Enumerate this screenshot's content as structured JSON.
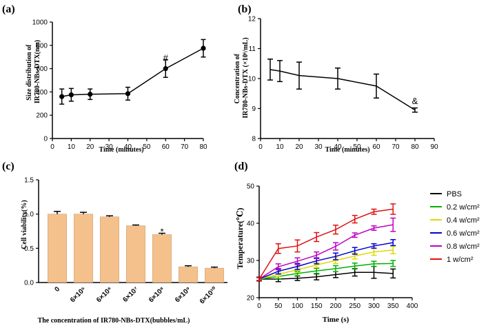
{
  "chart_data": [
    {
      "id": "a",
      "panel_label": "(a)",
      "type": "line",
      "title": "",
      "xlabel": "Time (minutes)",
      "ylabel": "Size distribution of IR780-NBs-DTX(nm)",
      "ylabel_lines": [
        "Size distribution of",
        "IR780-NBs-DTX(nm)"
      ],
      "xlim": [
        0,
        80
      ],
      "ylim": [
        0,
        1000
      ],
      "xticks": [
        0,
        10,
        20,
        30,
        40,
        50,
        60,
        70,
        80
      ],
      "yticks": [
        0,
        200,
        400,
        600,
        800,
        1000
      ],
      "x": [
        5,
        10,
        20,
        40,
        60,
        80
      ],
      "values": [
        360,
        375,
        380,
        385,
        600,
        775
      ],
      "errors": [
        65,
        55,
        45,
        55,
        75,
        75
      ],
      "annotations": [
        {
          "text": "#",
          "x": 60,
          "y": 690
        }
      ]
    },
    {
      "id": "b",
      "panel_label": "(b)",
      "type": "line",
      "title": "",
      "xlabel": "Time (minutes)",
      "ylabel": "Concentration of IR780-NBs-DTX (×10⁶/mL)",
      "ylabel_lines": [
        "Concentration of",
        "IR780-NBs-DTX (×10⁶/mL)"
      ],
      "xlim": [
        0,
        90
      ],
      "ylim": [
        8,
        12
      ],
      "xticks": [
        0,
        10,
        20,
        30,
        40,
        50,
        60,
        70,
        80,
        90
      ],
      "yticks": [
        8,
        9,
        10,
        11,
        12
      ],
      "x": [
        5,
        10,
        20,
        40,
        60,
        80
      ],
      "values": [
        10.3,
        10.25,
        10.1,
        10.0,
        9.75,
        8.95
      ],
      "errors": [
        0.35,
        0.35,
        0.45,
        0.35,
        0.4,
        0.07
      ],
      "annotations": [
        {
          "text": "&",
          "x": 80,
          "y": 9.15
        }
      ]
    },
    {
      "id": "c",
      "panel_label": "(c)",
      "type": "bar",
      "title": "",
      "xlabel": "The concentration of IR780-NBs-DTX(bubbles/mL)",
      "ylabel": "Cell viability(%)",
      "ylim": [
        0,
        1.5
      ],
      "yticks": [
        "0.0",
        "0.5",
        "1.0",
        "1.5"
      ],
      "categories": [
        "0",
        "6×10⁵",
        "6×10⁶",
        "6×10⁷",
        "6×10⁸",
        "6×10⁹",
        "6×10¹⁰"
      ],
      "values": [
        1.0,
        1.0,
        0.96,
        0.83,
        0.7,
        0.23,
        0.21
      ],
      "errors": [
        0.04,
        0.025,
        0.015,
        0.01,
        0.02,
        0.015,
        0.015
      ],
      "bar_color": "#f4c08c",
      "annotations": [
        {
          "text": "*",
          "category_index": 4,
          "y": 0.76
        }
      ]
    },
    {
      "id": "d",
      "panel_label": "(d)",
      "type": "line",
      "title": "",
      "xlabel": "Time (s)",
      "ylabel": "Temperature(℃)",
      "xlim": [
        0,
        400
      ],
      "ylim": [
        20,
        50
      ],
      "xticks": [
        0,
        50,
        100,
        150,
        200,
        250,
        300,
        350,
        400
      ],
      "yticks": [
        20,
        30,
        40,
        50
      ],
      "legend_position": "right",
      "series": [
        {
          "name": "PBS",
          "color": "#000000",
          "x": [
            0,
            50,
            100,
            150,
            200,
            250,
            300,
            350
          ],
          "values": [
            25,
            25,
            25.2,
            25.6,
            26.2,
            26.8,
            26.8,
            26.5
          ],
          "errors": [
            0.5,
            0.7,
            0.6,
            0.8,
            0.8,
            1.0,
            1.6,
            1.2
          ]
        },
        {
          "name": "0.2 w/cm²",
          "color": "#00b000",
          "x": [
            0,
            50,
            100,
            150,
            200,
            250,
            300,
            350
          ],
          "values": [
            25,
            25.7,
            26.5,
            27.2,
            27.8,
            28.5,
            29.1,
            29.2
          ],
          "errors": [
            0.4,
            0.6,
            0.6,
            0.7,
            0.8,
            0.8,
            0.7,
            0.8
          ]
        },
        {
          "name": "0.4 w/cm²",
          "color": "#e0d800",
          "x": [
            0,
            50,
            100,
            150,
            200,
            250,
            300,
            350
          ],
          "values": [
            25,
            26.3,
            27.5,
            28.8,
            30,
            31.2,
            32.3,
            32.8
          ],
          "errors": [
            0.4,
            0.6,
            0.7,
            0.7,
            0.8,
            0.8,
            0.9,
            1.0
          ]
        },
        {
          "name": "0.6 w/cm²",
          "color": "#0000d0",
          "x": [
            0,
            50,
            100,
            150,
            200,
            250,
            300,
            350
          ],
          "values": [
            25,
            27.1,
            28.4,
            29.9,
            31.1,
            32.6,
            33.9,
            34.8
          ],
          "errors": [
            0.4,
            0.7,
            0.8,
            0.8,
            0.9,
            0.9,
            0.6,
            0.8
          ]
        },
        {
          "name": "0.8 w/cm²",
          "color": "#c000c0",
          "x": [
            0,
            50,
            100,
            150,
            200,
            250,
            300,
            350
          ],
          "values": [
            25,
            28.3,
            29.8,
            31.4,
            33.8,
            36.8,
            38.7,
            39.6
          ],
          "errors": [
            0.4,
            0.8,
            0.9,
            0.9,
            1.0,
            0.6,
            0.6,
            1.8
          ]
        },
        {
          "name": "1 w/cm²",
          "color": "#e01010",
          "x": [
            0,
            50,
            100,
            150,
            200,
            250,
            300,
            350
          ],
          "values": [
            25,
            33.2,
            33.9,
            36.3,
            38.3,
            41.1,
            43.1,
            43.8
          ],
          "errors": [
            0.4,
            1.3,
            1.6,
            1.2,
            1.2,
            1.0,
            0.7,
            1.4
          ]
        }
      ]
    }
  ]
}
